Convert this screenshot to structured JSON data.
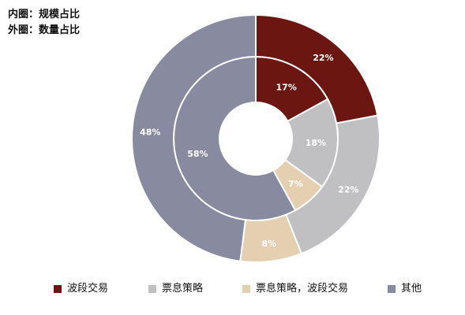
{
  "notes": [
    "内圈：规模占比",
    "外圈：数量占比"
  ],
  "legend": [
    {
      "label": "波段交易",
      "color": "#6b1611"
    },
    {
      "label": "票息策略",
      "color": "#c0c0c2"
    },
    {
      "label": "票息策略，波段交易",
      "color": "#e5cfb1"
    },
    {
      "label": "其他",
      "color": "#888aa0"
    }
  ],
  "chart_data": {
    "type": "pie",
    "title": "",
    "categories": [
      "波段交易",
      "票息策略",
      "票息策略，波段交易",
      "其他"
    ],
    "series": [
      {
        "name": "内圈：规模占比",
        "values": [
          17,
          18,
          7,
          58
        ],
        "labels": [
          "17%",
          "18%",
          "7%",
          "58%"
        ]
      },
      {
        "name": "外圈：数量占比",
        "values": [
          22,
          22,
          8,
          48
        ],
        "labels": [
          "22%",
          "22%",
          "8%",
          "48%"
        ]
      }
    ],
    "colors": [
      "#6b1611",
      "#c0c0c2",
      "#e5cfb1",
      "#888aa0"
    ]
  }
}
